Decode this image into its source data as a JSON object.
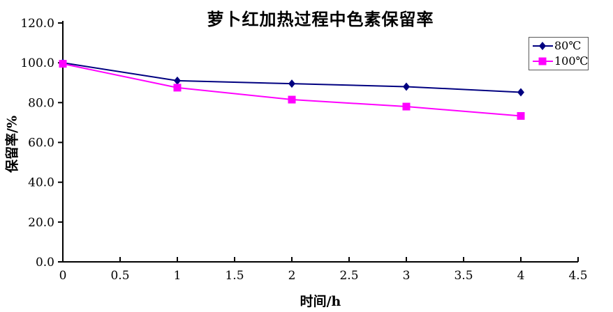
{
  "chart_data": {
    "type": "line",
    "title": "萝卜红加热过程中色素保留率",
    "xlabel": "时间/h",
    "ylabel": "保留率/%",
    "x": [
      0,
      1,
      2,
      3,
      4
    ],
    "series": [
      {
        "name": "80℃",
        "color": "#000080",
        "marker": "diamond",
        "values": [
          100,
          91,
          89.5,
          88,
          85.2
        ]
      },
      {
        "name": "100℃",
        "color": "#ff00ff",
        "marker": "square",
        "values": [
          99.5,
          87.5,
          81.5,
          78,
          73.3
        ]
      }
    ],
    "xlim": [
      0,
      4.5
    ],
    "ylim": [
      0,
      120
    ],
    "xticks": [
      "0",
      "0.5",
      "1",
      "1.5",
      "2",
      "2.5",
      "3",
      "3.5",
      "4",
      "4.5"
    ],
    "yticks": [
      "0.0",
      "20.0",
      "40.0",
      "60.0",
      "80.0",
      "100.0",
      "120.0"
    ],
    "grid": false,
    "legend_position": "top-right"
  },
  "colors": {
    "axis": "#000000",
    "tick_text": "#000000",
    "legend_border": "#595959",
    "background": "#ffffff"
  }
}
